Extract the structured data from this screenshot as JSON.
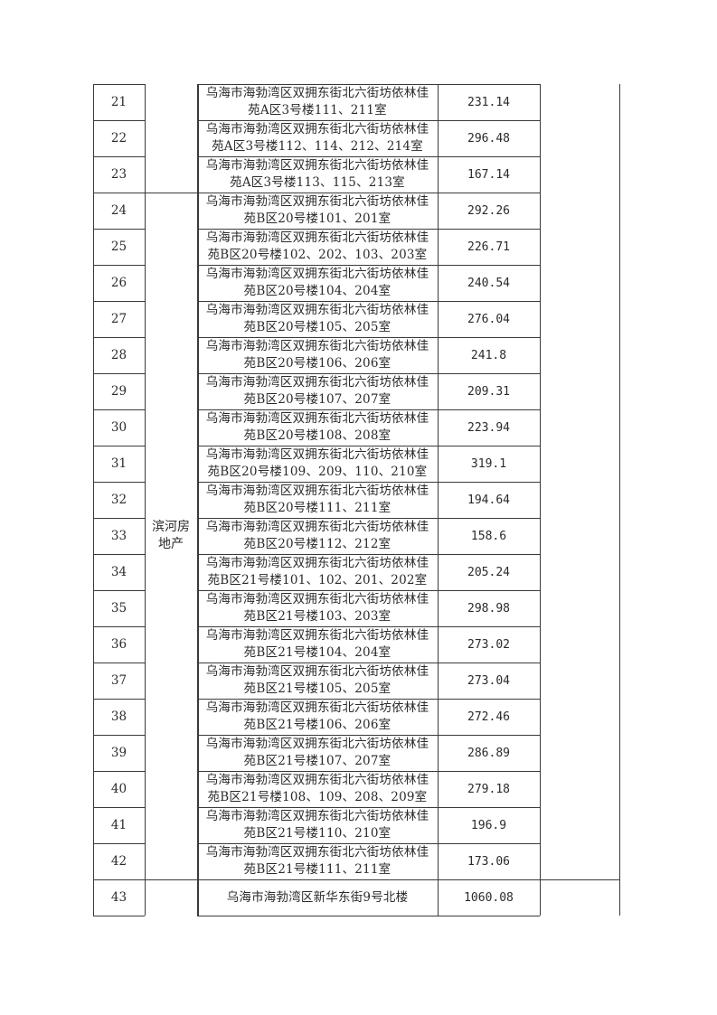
{
  "table": {
    "owner_group": {
      "label": "滨河房地产",
      "from_row": "24",
      "to_row": "42"
    },
    "rows": [
      {
        "no": "21",
        "address": "乌海市海勃湾区双拥东街北六街坊依林佳苑A区3号楼111、211室",
        "area": "231.14"
      },
      {
        "no": "22",
        "address": "乌海市海勃湾区双拥东街北六街坊依林佳苑A区3号楼112、114、212、214室",
        "area": "296.48"
      },
      {
        "no": "23",
        "address": "乌海市海勃湾区双拥东街北六街坊依林佳苑A区3号楼113、115、213室",
        "area": "167.14"
      },
      {
        "no": "24",
        "address": "乌海市海勃湾区双拥东街北六街坊依林佳苑B区20号楼101、201室",
        "area": "292.26"
      },
      {
        "no": "25",
        "address": "乌海市海勃湾区双拥东街北六街坊依林佳苑B区20号楼102、202、103、203室",
        "area": "226.71"
      },
      {
        "no": "26",
        "address": "乌海市海勃湾区双拥东街北六街坊依林佳苑B区20号楼104、204室",
        "area": "240.54"
      },
      {
        "no": "27",
        "address": "乌海市海勃湾区双拥东街北六街坊依林佳苑B区20号楼105、205室",
        "area": "276.04"
      },
      {
        "no": "28",
        "address": "乌海市海勃湾区双拥东街北六街坊依林佳苑B区20号楼106、206室",
        "area": "241.8"
      },
      {
        "no": "29",
        "address": "乌海市海勃湾区双拥东街北六街坊依林佳苑B区20号楼107、207室",
        "area": "209.31"
      },
      {
        "no": "30",
        "address": "乌海市海勃湾区双拥东街北六街坊依林佳苑B区20号楼108、208室",
        "area": "223.94"
      },
      {
        "no": "31",
        "address": "乌海市海勃湾区双拥东街北六街坊依林佳苑B区20号楼109、209、110、210室",
        "area": "319.1"
      },
      {
        "no": "32",
        "address": "乌海市海勃湾区双拥东街北六街坊依林佳苑B区20号楼111、211室",
        "area": "194.64"
      },
      {
        "no": "33",
        "address": "乌海市海勃湾区双拥东街北六街坊依林佳苑B区20号楼112、212室",
        "area": "158.6"
      },
      {
        "no": "34",
        "address": "乌海市海勃湾区双拥东街北六街坊依林佳苑B区21号楼101、102、201、202室",
        "area": "205.24"
      },
      {
        "no": "35",
        "address": "乌海市海勃湾区双拥东街北六街坊依林佳苑B区21号楼103、203室",
        "area": "298.98"
      },
      {
        "no": "36",
        "address": "乌海市海勃湾区双拥东街北六街坊依林佳苑B区21号楼104、204室",
        "area": "273.02"
      },
      {
        "no": "37",
        "address": "乌海市海勃湾区双拥东街北六街坊依林佳苑B区21号楼105、205室",
        "area": "273.04"
      },
      {
        "no": "38",
        "address": "乌海市海勃湾区双拥东街北六街坊依林佳苑B区21号楼106、206室",
        "area": "272.46"
      },
      {
        "no": "39",
        "address": "乌海市海勃湾区双拥东街北六街坊依林佳苑B区21号楼107、207室",
        "area": "286.89"
      },
      {
        "no": "40",
        "address": "乌海市海勃湾区双拥东街北六街坊依林佳苑B区21号楼108、109、208、209室",
        "area": "279.18"
      },
      {
        "no": "41",
        "address": "乌海市海勃湾区双拥东街北六街坊依林佳苑B区21号楼110、210室",
        "area": "196.9"
      },
      {
        "no": "42",
        "address": "乌海市海勃湾区双拥东街北六街坊依林佳苑B区21号楼111、211室",
        "area": "173.06"
      },
      {
        "no": "43",
        "address": "乌海市海勃湾区新华东街9号北楼",
        "area": "1060.08"
      }
    ]
  }
}
